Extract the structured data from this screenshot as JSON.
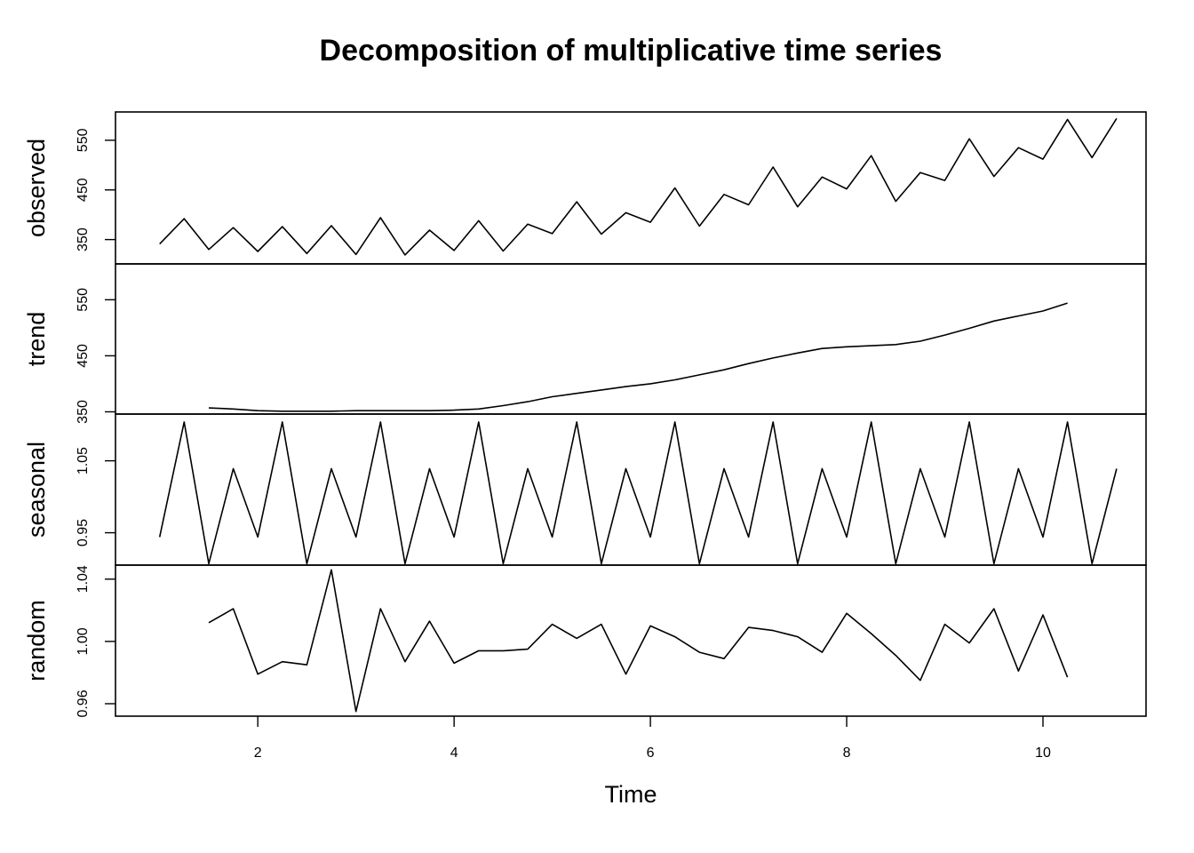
{
  "chart_data": {
    "type": "line",
    "title": "Decomposition of multiplicative time series",
    "xlabel": "Time",
    "xlim": [
      0.55,
      11.05
    ],
    "xticks": [
      2,
      4,
      6,
      8,
      10
    ],
    "grid": false,
    "panels": [
      {
        "name": "observed",
        "ylabel": "observed",
        "ylim": [
          301,
          607
        ],
        "yticks": [
          350,
          450,
          550
        ],
        "x": [
          1,
          1.25,
          1.5,
          1.75,
          2,
          2.25,
          2.5,
          2.75,
          3,
          3.25,
          3.5,
          3.75,
          4,
          4.25,
          4.5,
          4.75,
          5,
          5.25,
          5.5,
          5.75,
          6,
          6.25,
          6.5,
          6.75,
          7,
          7.25,
          7.5,
          7.75,
          8,
          8.25,
          8.5,
          8.75,
          9,
          9.25,
          9.5,
          9.75,
          10,
          10.25,
          10.5,
          10.75
        ],
        "values": [
          341,
          392,
          330,
          374,
          326,
          376,
          322,
          378,
          320,
          394,
          319,
          369,
          328,
          388,
          327,
          381,
          362,
          426,
          361,
          404,
          385,
          454,
          377,
          441,
          420,
          496,
          416,
          476,
          452,
          519,
          427,
          485,
          469,
          553,
          477,
          535,
          512,
          592,
          515,
          594
        ]
      },
      {
        "name": "trend",
        "ylabel": "trend",
        "ylim": [
          346,
          614
        ],
        "yticks": [
          350,
          450,
          550
        ],
        "x": [
          1.5,
          1.75,
          2,
          2.25,
          2.5,
          2.75,
          3,
          3.25,
          3.5,
          3.75,
          4,
          4.25,
          4.5,
          4.75,
          5,
          5.25,
          5.5,
          5.75,
          6,
          6.25,
          6.5,
          6.75,
          7,
          7.25,
          7.5,
          7.75,
          8,
          8.25,
          8.5,
          8.75,
          9,
          9.25,
          9.5,
          9.75,
          10,
          10.25
        ],
        "values": [
          357,
          355,
          352,
          351,
          351,
          351,
          352,
          352,
          352,
          352,
          353,
          355,
          361,
          368,
          377,
          383,
          389,
          395,
          400,
          407,
          416,
          425,
          436,
          446,
          455,
          463,
          466,
          468,
          470,
          476,
          487,
          499,
          512,
          521,
          530,
          544
        ]
      },
      {
        "name": "seasonal",
        "ylabel": "seasonal",
        "ylim": [
          0.905,
          1.115
        ],
        "yticks": [
          0.95,
          1.05
        ],
        "x": [
          1,
          1.25,
          1.5,
          1.75,
          2,
          2.25,
          2.5,
          2.75,
          3,
          3.25,
          3.5,
          3.75,
          4,
          4.25,
          4.5,
          4.75,
          5,
          5.25,
          5.5,
          5.75,
          6,
          6.25,
          6.5,
          6.75,
          7,
          7.25,
          7.5,
          7.75,
          8,
          8.25,
          8.5,
          8.75,
          9,
          9.25,
          9.5,
          9.75,
          10,
          10.25,
          10.5,
          10.75
        ],
        "values": [
          0.944,
          1.104,
          0.907,
          1.039,
          0.944,
          1.104,
          0.907,
          1.039,
          0.944,
          1.104,
          0.907,
          1.039,
          0.944,
          1.104,
          0.907,
          1.039,
          0.944,
          1.104,
          0.907,
          1.039,
          0.944,
          1.104,
          0.907,
          1.039,
          0.944,
          1.104,
          0.907,
          1.039,
          0.944,
          1.104,
          0.907,
          1.039,
          0.944,
          1.104,
          0.907,
          1.039,
          0.944,
          1.104,
          0.907,
          1.039
        ]
      },
      {
        "name": "random",
        "ylabel": "random",
        "ylim": [
          0.952,
          1.049
        ],
        "yticks": [
          0.96,
          1.0,
          1.04
        ],
        "x": [
          1.5,
          1.75,
          2,
          2.25,
          2.5,
          2.75,
          3,
          3.25,
          3.5,
          3.75,
          4,
          4.25,
          4.5,
          4.75,
          5,
          5.25,
          5.5,
          5.75,
          6,
          6.25,
          6.5,
          6.75,
          7,
          7.25,
          7.5,
          7.75,
          8,
          8.25,
          8.5,
          8.75,
          9,
          9.25,
          9.5,
          9.75,
          10,
          10.25
        ],
        "values": [
          1.012,
          1.021,
          0.979,
          0.987,
          0.985,
          1.046,
          0.955,
          1.021,
          0.987,
          1.013,
          0.986,
          0.994,
          0.994,
          0.995,
          1.011,
          1.002,
          1.011,
          0.979,
          1.01,
          1.003,
          0.993,
          0.989,
          1.009,
          1.007,
          1.003,
          0.993,
          1.018,
          1.005,
          0.991,
          0.975,
          1.011,
          0.999,
          1.021,
          0.981,
          1.017,
          0.977
        ]
      }
    ]
  }
}
